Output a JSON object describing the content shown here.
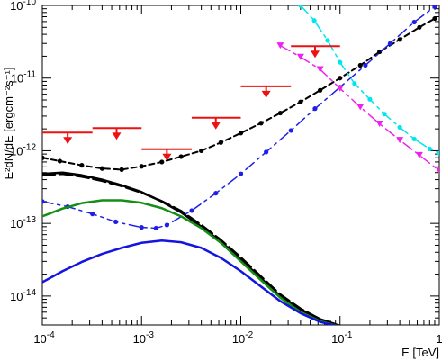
{
  "chart_data": {
    "type": "line",
    "title": "",
    "xlabel": "E [TeV]",
    "ylabel": "E²dN/dE [ergcm⁻²s⁻¹]",
    "xscale": "log",
    "yscale": "log",
    "xlim": [
      0.0001,
      1
    ],
    "ylim": [
      4e-15,
      1e-10
    ],
    "grid": false,
    "x_tick_labels": [
      {
        "value": 0.0001,
        "base": "10",
        "exp": "-4"
      },
      {
        "value": 0.001,
        "base": "10",
        "exp": "-3"
      },
      {
        "value": 0.01,
        "base": "10",
        "exp": "-2"
      },
      {
        "value": 0.1,
        "base": "10",
        "exp": "-1"
      },
      {
        "value": 1,
        "base": "1",
        "exp": ""
      }
    ],
    "y_tick_labels": [
      {
        "value": 1e-14,
        "base": "10",
        "exp": "-14"
      },
      {
        "value": 1e-13,
        "base": "10",
        "exp": "-13"
      },
      {
        "value": 1e-12,
        "base": "10",
        "exp": "-12"
      },
      {
        "value": 1e-11,
        "base": "10",
        "exp": "-11"
      },
      {
        "value": 1e-10,
        "base": "10",
        "exp": "-10"
      }
    ],
    "series": [
      {
        "color": "#000000",
        "dash": "6,4",
        "width": 2,
        "markers": true,
        "x": [
          0.0001,
          0.00015,
          0.00025,
          0.0004,
          0.00063,
          0.001,
          0.0016,
          0.0025,
          0.004,
          0.0063,
          0.01,
          0.016,
          0.025,
          0.04,
          0.063,
          0.1,
          0.16,
          0.25,
          0.4,
          0.63,
          0.9
        ],
        "y": [
          8e-13,
          7.2e-13,
          6.3e-13,
          5.7e-13,
          5.5e-13,
          6.1e-13,
          7e-13,
          8.3e-13,
          1e-12,
          1.3e-12,
          1.75e-12,
          2.4e-12,
          3.3e-12,
          4.7e-12,
          6.8e-12,
          1e-11,
          1.5e-11,
          2.3e-11,
          3.4e-11,
          5e-11,
          6.6e-11
        ]
      },
      {
        "color": "#1f1fe6",
        "dash": "12,5,3,5",
        "width": 1.5,
        "markers": true,
        "x": [
          0.0001,
          0.00018,
          0.00032,
          0.00055,
          0.001,
          0.0014,
          0.0018,
          0.0032,
          0.0056,
          0.01,
          0.018,
          0.032,
          0.056,
          0.1,
          0.18,
          0.32,
          0.56,
          0.9
        ],
        "y": [
          2e-13,
          1.7e-13,
          1.35e-13,
          1.05e-13,
          8.8e-14,
          8.6e-14,
          9.5e-14,
          1.5e-13,
          2.6e-13,
          4.8e-13,
          9.6e-13,
          1.9e-12,
          3.8e-12,
          7.5e-12,
          1.5e-11,
          3e-11,
          5.9e-11,
          9.6e-11
        ]
      },
      {
        "color": "#00e5ee",
        "dash": "12,5,3,5",
        "width": 1.5,
        "markers": true,
        "x": [
          0.04,
          0.055,
          0.075,
          0.1,
          0.14,
          0.2,
          0.28,
          0.4,
          0.56,
          0.8,
          1.0
        ],
        "y": [
          1e-10,
          6.2e-11,
          3.3e-11,
          1.65e-11,
          8.4e-12,
          5.1e-12,
          3.2e-12,
          2.1e-12,
          1.45e-12,
          1.06e-12,
          9.3e-13
        ]
      },
      {
        "color": "#ee22ee",
        "dash": "12,5,3,5",
        "width": 1.5,
        "markers": true,
        "marker_shape": "triangle-down",
        "x": [
          0.025,
          0.04,
          0.063,
          0.1,
          0.16,
          0.25,
          0.4,
          0.63,
          1.0
        ],
        "y": [
          2.8e-11,
          1.95e-11,
          1.32e-11,
          7.2e-12,
          4e-12,
          2.35e-12,
          1.4e-12,
          8.7e-13,
          5.3e-13
        ]
      },
      {
        "color": "#000000",
        "dash": "",
        "width": 2.5,
        "markers": false,
        "x": [
          0.0001,
          0.00016,
          0.00025,
          0.0004,
          0.00063,
          0.001,
          0.0016,
          0.0025,
          0.004,
          0.0063,
          0.01,
          0.016,
          0.025,
          0.04,
          0.063,
          0.1
        ],
        "y": [
          4.8e-13,
          5e-13,
          4.6e-13,
          4e-13,
          3.35e-13,
          2.7e-13,
          2e-13,
          1.42e-13,
          9e-14,
          5.6e-14,
          3.2e-14,
          1.75e-14,
          1e-14,
          6.5e-15,
          4.8e-15,
          3.9e-15
        ]
      },
      {
        "color": "#000000",
        "dash": "14,5",
        "width": 2.5,
        "markers": false,
        "x": [
          0.0001,
          0.00016,
          0.00025,
          0.0004,
          0.00063,
          0.001,
          0.0016,
          0.0025,
          0.004,
          0.0063,
          0.01,
          0.016,
          0.025,
          0.04,
          0.063,
          0.1
        ],
        "y": [
          4.6e-13,
          4.8e-13,
          4.4e-13,
          3.85e-13,
          3.25e-13,
          2.65e-13,
          2.02e-13,
          1.48e-13,
          9.5e-14,
          5.9e-14,
          3.4e-14,
          1.85e-14,
          1.05e-14,
          6.7e-15,
          4.8e-15,
          3.9e-15
        ]
      },
      {
        "color": "#138f13",
        "dash": "",
        "width": 2.5,
        "markers": false,
        "x": [
          0.0001,
          0.00016,
          0.00025,
          0.0004,
          0.00063,
          0.001,
          0.0016,
          0.0025,
          0.004,
          0.0063,
          0.01,
          0.016,
          0.025,
          0.04,
          0.063,
          0.1
        ],
        "y": [
          1.25e-13,
          1.6e-13,
          1.9e-13,
          2.08e-13,
          2.08e-13,
          1.92e-13,
          1.62e-13,
          1.25e-13,
          8.6e-14,
          5.4e-14,
          3e-14,
          1.65e-14,
          9.5e-15,
          6e-15,
          4.5e-15,
          3.8e-15
        ]
      },
      {
        "color": "#1414e0",
        "dash": "",
        "width": 2.5,
        "markers": false,
        "x": [
          0.0001,
          0.00016,
          0.00025,
          0.0004,
          0.00063,
          0.001,
          0.0016,
          0.0025,
          0.004,
          0.0063,
          0.01,
          0.016,
          0.025,
          0.04,
          0.063,
          0.1
        ],
        "y": [
          1.55e-14,
          2.2e-14,
          2.95e-14,
          3.8e-14,
          4.6e-14,
          5.4e-14,
          5.8e-14,
          5.5e-14,
          4.6e-14,
          3.35e-14,
          2.2e-14,
          1.35e-14,
          8.5e-15,
          5.8e-15,
          4.4e-15,
          3.8e-15
        ]
      }
    ],
    "upper_limits": {
      "color": "#ee1111",
      "points": [
        {
          "x": 0.00018,
          "xmin": 0.0001,
          "xmax": 0.00032,
          "y": 1.78e-12
        },
        {
          "x": 0.00056,
          "xmin": 0.00032,
          "xmax": 0.001,
          "y": 2.05e-12
        },
        {
          "x": 0.0018,
          "xmin": 0.001,
          "xmax": 0.0032,
          "y": 1.05e-12
        },
        {
          "x": 0.0056,
          "xmin": 0.0032,
          "xmax": 0.01,
          "y": 2.85e-12
        },
        {
          "x": 0.018,
          "xmin": 0.01,
          "xmax": 0.032,
          "y": 7.7e-12
        },
        {
          "x": 0.056,
          "xmin": 0.032,
          "xmax": 0.1,
          "y": 2.75e-11
        }
      ]
    }
  }
}
